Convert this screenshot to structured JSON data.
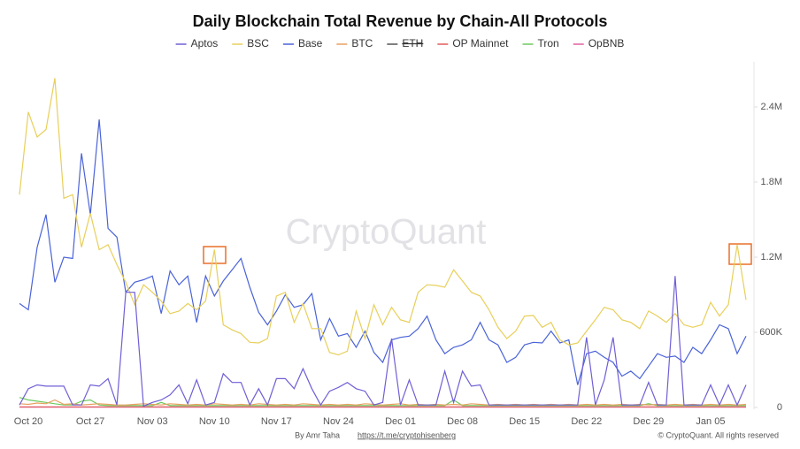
{
  "chart_data": {
    "type": "line",
    "title": "Daily Blockchain Total Revenue by Chain-All Protocols",
    "watermark": "CryptoQuant",
    "footer": {
      "author": "By Amr Taha",
      "link": "https://t.me/cryptohisenberg",
      "copyright": "© CryptoQuant. All rights reserved"
    },
    "categories": [
      null,
      "Oct 20",
      null,
      null,
      null,
      null,
      null,
      null,
      "Oct 27",
      null,
      null,
      null,
      null,
      null,
      null,
      "Nov 03",
      null,
      null,
      null,
      null,
      null,
      null,
      "Nov 10",
      null,
      null,
      null,
      null,
      null,
      null,
      "Nov 17",
      null,
      null,
      null,
      null,
      null,
      null,
      "Nov 24",
      null,
      null,
      null,
      null,
      null,
      null,
      "Dec 01",
      null,
      null,
      null,
      null,
      null,
      null,
      "Dec 08",
      null,
      null,
      null,
      null,
      null,
      null,
      "Dec 15",
      null,
      null,
      null,
      null,
      null,
      null,
      "Dec 22",
      null,
      null,
      null,
      null,
      null,
      null,
      "Dec 29",
      null,
      null,
      null,
      null,
      null,
      null,
      "Jan 05",
      null,
      null,
      null,
      null
    ],
    "ylim": [
      0,
      2760000
    ],
    "yticks": [
      0,
      {
        "value": 600000,
        "label": "600K"
      },
      {
        "value": 1200000,
        "label": "1.2M"
      },
      {
        "value": 1800000,
        "label": "1.8M"
      },
      {
        "value": 2400000,
        "label": "2.4M"
      }
    ],
    "y_axis_side": "right",
    "series": [
      {
        "name": "Aptos",
        "color": "#6f5fd6",
        "values": [
          20000,
          150000,
          180000,
          170000,
          170000,
          170000,
          20000,
          20000,
          180000,
          170000,
          230000,
          20000,
          920000,
          920000,
          10000,
          40000,
          60000,
          100000,
          180000,
          30000,
          220000,
          20000,
          40000,
          270000,
          200000,
          200000,
          20000,
          150000,
          20000,
          230000,
          230000,
          150000,
          310000,
          150000,
          20000,
          130000,
          160000,
          200000,
          150000,
          130000,
          20000,
          40000,
          550000,
          20000,
          220000,
          20000,
          20000,
          20000,
          290000,
          40000,
          290000,
          170000,
          180000,
          20000,
          20000,
          20000,
          20000,
          20000,
          20000,
          20000,
          20000,
          20000,
          20000,
          20000,
          560000,
          20000,
          220000,
          560000,
          20000,
          20000,
          20000,
          200000,
          20000,
          20000,
          1050000,
          20000,
          20000,
          20000,
          180000,
          20000,
          180000,
          20000,
          180000
        ]
      },
      {
        "name": "BSC",
        "color": "#e8cf5a",
        "values": [
          1700000,
          2360000,
          2160000,
          2220000,
          2630000,
          1670000,
          1700000,
          1280000,
          1550000,
          1260000,
          1300000,
          1140000,
          1000000,
          820000,
          980000,
          920000,
          850000,
          750000,
          770000,
          830000,
          780000,
          850000,
          1260000,
          660000,
          620000,
          590000,
          520000,
          515000,
          550000,
          890000,
          920000,
          680000,
          830000,
          630000,
          630000,
          440000,
          420000,
          450000,
          770000,
          550000,
          820000,
          660000,
          800000,
          700000,
          680000,
          920000,
          980000,
          975000,
          960000,
          1100000,
          1010000,
          920000,
          890000,
          780000,
          640000,
          550000,
          610000,
          730000,
          735000,
          640000,
          680000,
          540000,
          500000,
          515000,
          610000,
          700000,
          800000,
          780000,
          700000,
          680000,
          630000,
          770000,
          730000,
          680000,
          750000,
          660000,
          640000,
          660000,
          840000,
          730000,
          820000,
          1300000,
          860000
        ]
      },
      {
        "name": "Base",
        "color": "#4a63d8",
        "values": [
          830000,
          780000,
          1280000,
          1540000,
          1000000,
          1200000,
          1190000,
          2030000,
          1540000,
          2300000,
          1430000,
          1360000,
          920000,
          1000000,
          1020000,
          1050000,
          750000,
          1090000,
          980000,
          1050000,
          680000,
          1050000,
          890000,
          1010000,
          1100000,
          1190000,
          960000,
          760000,
          660000,
          770000,
          900000,
          800000,
          820000,
          910000,
          540000,
          710000,
          570000,
          590000,
          480000,
          610000,
          440000,
          360000,
          540000,
          560000,
          570000,
          630000,
          730000,
          540000,
          430000,
          480000,
          500000,
          540000,
          680000,
          540000,
          500000,
          360000,
          400000,
          500000,
          520000,
          515000,
          610000,
          515000,
          540000,
          180000,
          430000,
          450000,
          400000,
          360000,
          250000,
          290000,
          230000,
          330000,
          430000,
          400000,
          410000,
          360000,
          480000,
          430000,
          540000,
          660000,
          630000,
          430000,
          570000
        ]
      },
      {
        "name": "BTC",
        "color": "#e8a060",
        "values": [
          30000,
          25000,
          35000,
          30000,
          60000,
          25000,
          30000,
          20000,
          25000,
          30000,
          25000,
          20000,
          20000,
          25000,
          30000,
          25000,
          20000,
          30000,
          25000,
          20000,
          25000,
          20000,
          30000,
          25000,
          20000,
          25000,
          20000,
          30000,
          25000,
          20000,
          25000,
          20000,
          30000,
          25000,
          20000,
          25000,
          20000,
          25000,
          20000,
          30000,
          25000,
          20000,
          25000,
          30000,
          20000,
          25000,
          20000,
          25000,
          20000,
          25000,
          20000,
          30000,
          25000,
          20000,
          25000,
          20000,
          25000,
          20000,
          25000,
          20000,
          25000,
          20000,
          25000,
          20000,
          25000,
          20000,
          25000,
          20000,
          25000,
          20000,
          25000,
          20000,
          25000,
          20000,
          25000,
          20000,
          25000,
          20000,
          25000,
          20000,
          25000,
          20000,
          25000
        ]
      },
      {
        "name": "ETH",
        "color": "#555555",
        "hidden": true
      },
      {
        "name": "OP Mainnet",
        "color": "#e05a5a",
        "values": [
          5000,
          5000,
          5000,
          5000,
          5000,
          5000,
          5000,
          5000,
          5000,
          5000,
          5000,
          5000,
          5000,
          5000,
          5000,
          5000,
          5000,
          5000,
          5000,
          5000,
          5000,
          5000,
          5000,
          5000,
          5000,
          5000,
          5000,
          5000,
          5000,
          5000,
          5000,
          5000,
          5000,
          5000,
          5000,
          5000,
          5000,
          5000,
          5000,
          5000,
          5000,
          5000,
          5000,
          5000,
          5000,
          5000,
          5000,
          5000,
          5000,
          5000,
          5000,
          5000,
          5000,
          5000,
          5000,
          5000,
          5000,
          5000,
          5000,
          5000,
          5000,
          5000,
          5000,
          5000,
          5000,
          5000,
          5000,
          5000,
          5000,
          5000,
          5000,
          5000,
          5000,
          5000,
          5000,
          5000,
          5000,
          5000,
          5000,
          5000,
          5000,
          5000,
          5000
        ]
      },
      {
        "name": "Tron",
        "color": "#6fc95f",
        "values": [
          80000,
          60000,
          50000,
          40000,
          30000,
          20000,
          20000,
          50000,
          60000,
          20000,
          15000,
          15000,
          15000,
          15000,
          15000,
          15000,
          40000,
          15000,
          15000,
          15000,
          15000,
          15000,
          15000,
          15000,
          15000,
          15000,
          15000,
          15000,
          15000,
          15000,
          15000,
          15000,
          15000,
          15000,
          15000,
          15000,
          15000,
          15000,
          15000,
          15000,
          15000,
          15000,
          15000,
          15000,
          15000,
          15000,
          15000,
          15000,
          15000,
          60000,
          15000,
          15000,
          15000,
          15000,
          15000,
          15000,
          15000,
          15000,
          15000,
          15000,
          15000,
          15000,
          15000,
          15000,
          15000,
          15000,
          15000,
          15000,
          15000,
          15000,
          15000,
          30000,
          15000,
          15000,
          15000,
          15000,
          15000,
          15000,
          15000,
          15000,
          15000,
          15000,
          15000
        ]
      },
      {
        "name": "OpBNB",
        "color": "#e060a0",
        "values": [
          2000,
          2000,
          2000,
          2000,
          2000,
          2000,
          2000,
          2000,
          2000,
          2000,
          2000,
          2000,
          2000,
          2000,
          2000,
          2000,
          2000,
          2000,
          2000,
          2000,
          2000,
          2000,
          2000,
          2000,
          2000,
          2000,
          2000,
          2000,
          2000,
          2000,
          2000,
          2000,
          2000,
          2000,
          2000,
          2000,
          2000,
          2000,
          2000,
          2000,
          2000,
          2000,
          2000,
          2000,
          2000,
          2000,
          2000,
          2000,
          2000,
          2000,
          2000,
          2000,
          2000,
          2000,
          2000,
          2000,
          2000,
          2000,
          2000,
          2000,
          2000,
          2000,
          2000,
          2000,
          2000,
          2000,
          2000,
          2000,
          2000,
          2000,
          2000,
          2000,
          2000,
          2000,
          2000,
          2000,
          2000,
          2000,
          2000,
          2000,
          2000,
          2000,
          2000
        ]
      }
    ]
  }
}
